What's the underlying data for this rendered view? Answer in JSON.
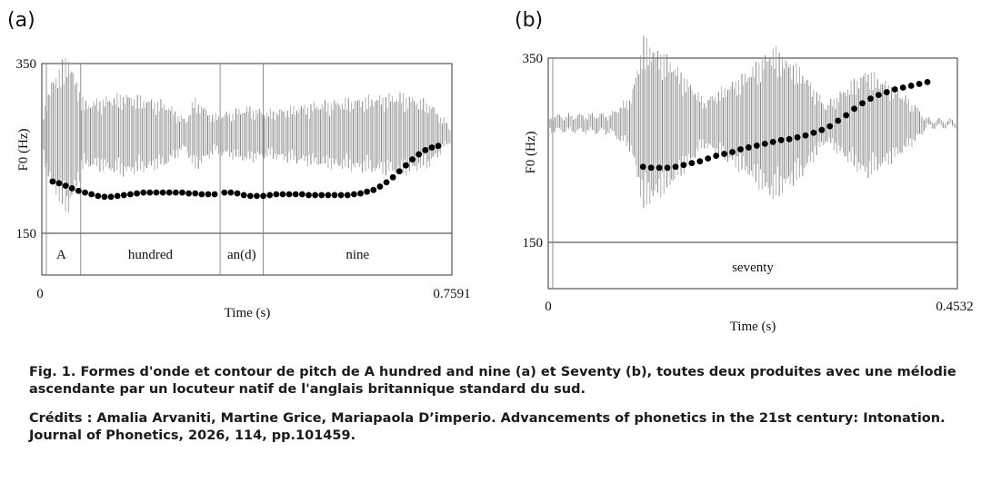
{
  "chart_data": [
    {
      "type": "line",
      "panel_label": "(a)",
      "title": "",
      "xlabel": "Time (s)",
      "ylabel": "F0 (Hz)",
      "xlim": [
        0,
        0.7591
      ],
      "ylim": [
        150,
        350
      ],
      "x_tick_labels": [
        "0",
        "0.7591"
      ],
      "y_tick_labels": [
        "350",
        "150"
      ],
      "segments": [
        {
          "label": "A",
          "start": 0.0,
          "end": 0.072
        },
        {
          "label": "hundred",
          "start": 0.072,
          "end": 0.33
        },
        {
          "label": "an(d)",
          "start": 0.33,
          "end": 0.41
        },
        {
          "label": "nine",
          "start": 0.41,
          "end": 0.7591
        }
      ],
      "series": [
        {
          "name": "F0 contour",
          "x": [
            0.02,
            0.032,
            0.044,
            0.056,
            0.068,
            0.08,
            0.092,
            0.104,
            0.116,
            0.128,
            0.14,
            0.152,
            0.164,
            0.176,
            0.188,
            0.2,
            0.212,
            0.224,
            0.236,
            0.248,
            0.26,
            0.272,
            0.284,
            0.296,
            0.308,
            0.32,
            0.338,
            0.35,
            0.362,
            0.374,
            0.386,
            0.398,
            0.41,
            0.422,
            0.434,
            0.446,
            0.458,
            0.47,
            0.482,
            0.494,
            0.506,
            0.518,
            0.53,
            0.542,
            0.554,
            0.566,
            0.578,
            0.59,
            0.602,
            0.614,
            0.626,
            0.638,
            0.65,
            0.662,
            0.674,
            0.686,
            0.698,
            0.71,
            0.722,
            0.734
          ],
          "y": [
            211,
            209,
            206,
            203,
            200,
            198,
            196,
            194,
            193,
            193,
            194,
            195,
            196,
            197,
            198,
            198,
            198,
            198,
            198,
            198,
            198,
            197,
            197,
            196,
            196,
            196,
            198,
            198,
            197,
            195,
            194,
            194,
            194,
            195,
            196,
            196,
            196,
            196,
            196,
            195,
            195,
            195,
            195,
            195,
            195,
            195,
            196,
            197,
            199,
            201,
            205,
            210,
            216,
            223,
            230,
            237,
            243,
            248,
            251,
            253
          ]
        }
      ]
    },
    {
      "type": "line",
      "panel_label": "(b)",
      "title": "",
      "xlabel": "Time (s)",
      "ylabel": "F0 (Hz)",
      "xlim": [
        0,
        0.4532
      ],
      "ylim": [
        150,
        350
      ],
      "x_tick_labels": [
        "0",
        "0.4532"
      ],
      "y_tick_labels": [
        "350",
        "150"
      ],
      "segments": [
        {
          "label": "seventy",
          "start": 0.0,
          "end": 0.4532
        }
      ],
      "series": [
        {
          "name": "F0 contour",
          "x": [
            0.105,
            0.114,
            0.123,
            0.132,
            0.141,
            0.15,
            0.159,
            0.168,
            0.177,
            0.186,
            0.195,
            0.204,
            0.213,
            0.222,
            0.231,
            0.24,
            0.249,
            0.258,
            0.267,
            0.276,
            0.285,
            0.294,
            0.303,
            0.312,
            0.321,
            0.33,
            0.339,
            0.348,
            0.357,
            0.366,
            0.375,
            0.384,
            0.393,
            0.402,
            0.411,
            0.42
          ],
          "y": [
            232,
            231,
            231,
            231,
            232,
            234,
            236,
            238,
            241,
            244,
            246,
            248,
            251,
            253,
            255,
            257,
            259,
            261,
            262,
            264,
            266,
            269,
            272,
            276,
            282,
            288,
            295,
            301,
            306,
            310,
            313,
            316,
            318,
            320,
            322,
            324
          ]
        }
      ]
    }
  ],
  "caption": "Fig. 1. Formes d'onde et contour de pitch de A hundred and nine (a) et Seventy (b), toutes deux produites avec une mélodie ascendante par un locuteur natif de l'anglais britannique standard du sud.",
  "credits": "Crédits : Amalia Arvaniti, Martine Grice, Mariapaola D’imperio. Advancements of phonetics in the 21st century: Intonation. Journal of Phonetics, 2026, 114, pp.101459."
}
